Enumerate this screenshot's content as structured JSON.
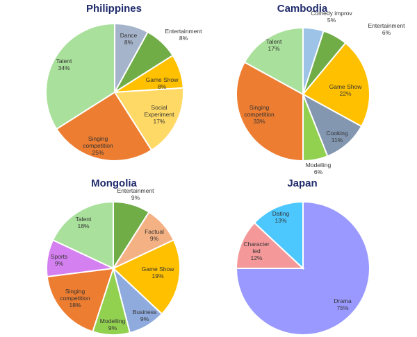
{
  "chart_data": [
    {
      "type": "pie",
      "title": "Philippines",
      "slices": [
        {
          "label": "Dance",
          "pct_label": "8%",
          "value": 8,
          "color": "#a5b4ca"
        },
        {
          "label": "Entertainment",
          "pct_label": "8%",
          "value": 8,
          "color": "#70ad47"
        },
        {
          "label": "Game Show",
          "pct_label": "8%",
          "value": 8,
          "color": "#ffc000"
        },
        {
          "label": "Social Experiment",
          "pct_label": "17%",
          "value": 17,
          "color": "#ffd966"
        },
        {
          "label": "Singing competition",
          "pct_label": "25%",
          "value": 25,
          "color": "#ed7d31"
        },
        {
          "label": "Talent",
          "pct_label": "34%",
          "value": 34,
          "color": "#a9e09b"
        }
      ]
    },
    {
      "type": "pie",
      "title": "Cambodia",
      "slices": [
        {
          "label": "Comedy improv",
          "pct_label": "5%",
          "value": 5,
          "color": "#9dc3e6"
        },
        {
          "label": "Entertainment",
          "pct_label": "6%",
          "value": 6,
          "color": "#70ad47"
        },
        {
          "label": "Game Show",
          "pct_label": "22%",
          "value": 22,
          "color": "#ffc000"
        },
        {
          "label": "Cooking",
          "pct_label": "11%",
          "value": 11,
          "color": "#8497b0"
        },
        {
          "label": "Modelling",
          "pct_label": "6%",
          "value": 6,
          "color": "#92d050"
        },
        {
          "label": "Singing competition",
          "pct_label": "33%",
          "value": 33,
          "color": "#ed7d31"
        },
        {
          "label": "Talent",
          "pct_label": "17%",
          "value": 17,
          "color": "#a9e09b"
        }
      ]
    },
    {
      "type": "pie",
      "title": "Mongolia",
      "slices": [
        {
          "label": "Entertainment",
          "pct_label": "9%",
          "value": 9,
          "color": "#70ad47"
        },
        {
          "label": "Factual",
          "pct_label": "9%",
          "value": 9,
          "color": "#f4b183"
        },
        {
          "label": "Game Show",
          "pct_label": "19%",
          "value": 19,
          "color": "#ffc000"
        },
        {
          "label": "Business",
          "pct_label": "9%",
          "value": 9,
          "color": "#8faadc"
        },
        {
          "label": "Modelling",
          "pct_label": "9%",
          "value": 9,
          "color": "#92d050"
        },
        {
          "label": "Singing competition",
          "pct_label": "18%",
          "value": 18,
          "color": "#ed7d31"
        },
        {
          "label": "Sports",
          "pct_label": "9%",
          "value": 9,
          "color": "#d580f0"
        },
        {
          "label": "Talent",
          "pct_label": "18%",
          "value": 18,
          "color": "#a9e09b"
        }
      ]
    },
    {
      "type": "pie",
      "title": "Japan",
      "slices": [
        {
          "label": "Drama",
          "pct_label": "75%",
          "value": 75,
          "color": "#9999ff"
        },
        {
          "label": "Character led",
          "pct_label": "12%",
          "value": 12,
          "color": "#f4989a"
        },
        {
          "label": "Dating",
          "pct_label": "13%",
          "value": 13,
          "color": "#4dc8ff"
        }
      ]
    }
  ]
}
